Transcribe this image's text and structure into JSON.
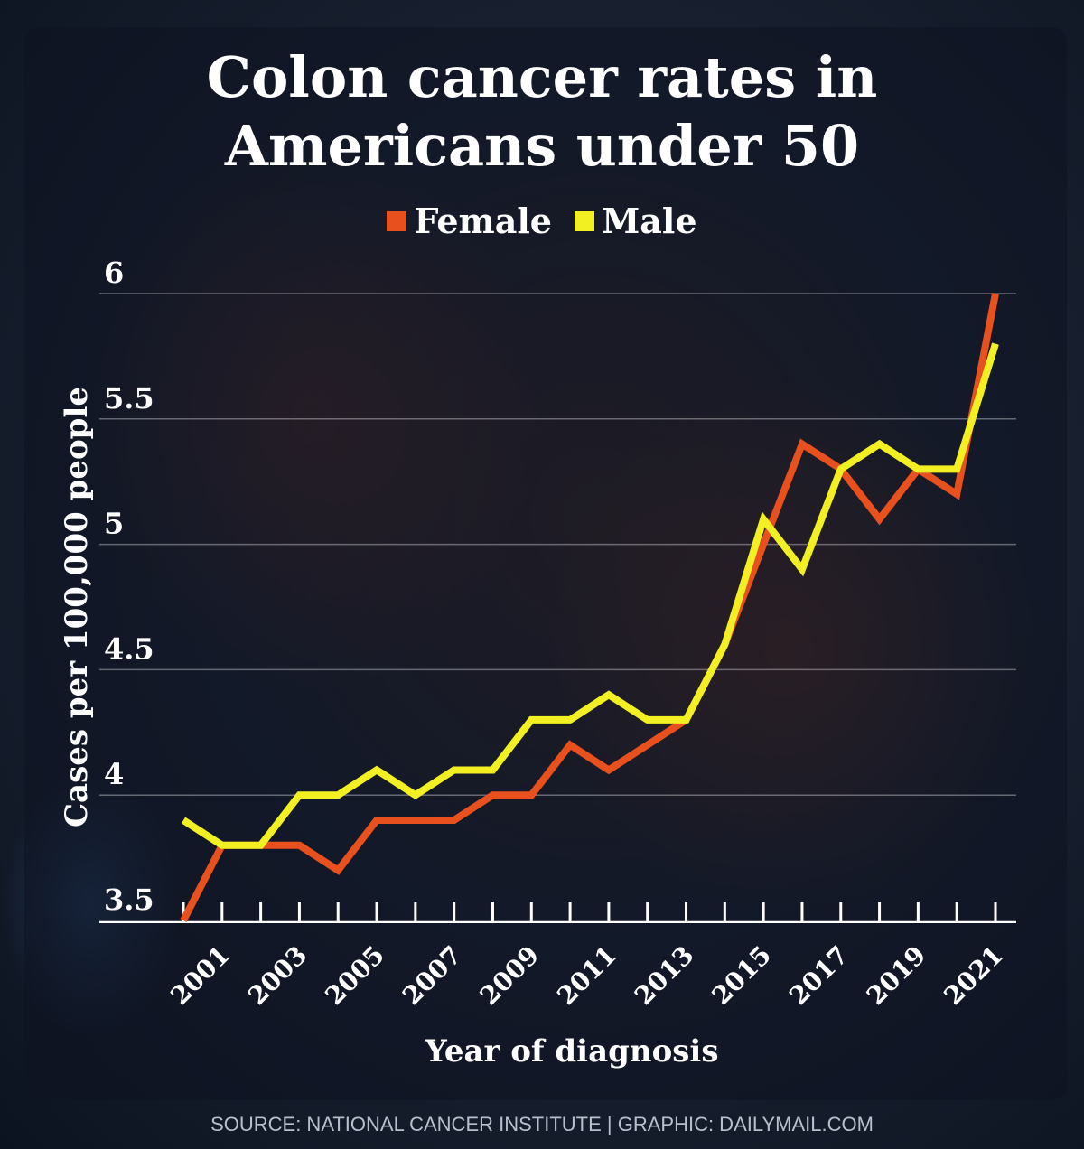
{
  "chart_data": {
    "type": "line",
    "title": "Colon cancer rates in Americans under 50",
    "title_lines": [
      "Colon cancer rates in",
      "Americans under 50"
    ],
    "xlabel": "Year of diagnosis",
    "ylabel": "Cases per 100,000 people",
    "x": [
      2000,
      2001,
      2002,
      2003,
      2004,
      2005,
      2006,
      2007,
      2008,
      2009,
      2010,
      2011,
      2012,
      2013,
      2014,
      2015,
      2016,
      2017,
      2018,
      2019,
      2020,
      2021
    ],
    "x_tick_labels": [
      "2001",
      "2003",
      "2005",
      "2007",
      "2009",
      "2011",
      "2013",
      "2015",
      "2017",
      "2019",
      "2021"
    ],
    "x_tick_values": [
      2001,
      2003,
      2005,
      2007,
      2009,
      2011,
      2013,
      2015,
      2017,
      2019,
      2021
    ],
    "ylim": [
      3.5,
      6
    ],
    "y_ticks": [
      3.5,
      4,
      4.5,
      5,
      5.5,
      6
    ],
    "y_tick_labels": [
      "3.5",
      "4",
      "4.5",
      "5",
      "5.5",
      "6"
    ],
    "grid": "horizontal",
    "legend_position": "top-center",
    "series": [
      {
        "name": "Female",
        "color": "#e8501e",
        "values": [
          3.5,
          3.8,
          3.8,
          3.8,
          3.7,
          3.9,
          3.9,
          3.9,
          4.0,
          4.0,
          4.2,
          4.1,
          4.2,
          4.3,
          4.6,
          5.0,
          5.4,
          5.3,
          5.1,
          5.3,
          5.2,
          6.0
        ]
      },
      {
        "name": "Male",
        "color": "#f2f023",
        "values": [
          3.9,
          3.8,
          3.8,
          4.0,
          4.0,
          4.1,
          4.0,
          4.1,
          4.1,
          4.3,
          4.3,
          4.4,
          4.3,
          4.3,
          4.6,
          5.1,
          4.9,
          5.3,
          5.4,
          5.3,
          5.3,
          5.8
        ]
      }
    ]
  },
  "legend": {
    "female_label": "Female",
    "male_label": "Male"
  },
  "footer": {
    "source": "SOURCE: NATIONAL CANCER INSTITUTE  |  GRAPHIC: DAILYMAIL.COM"
  }
}
